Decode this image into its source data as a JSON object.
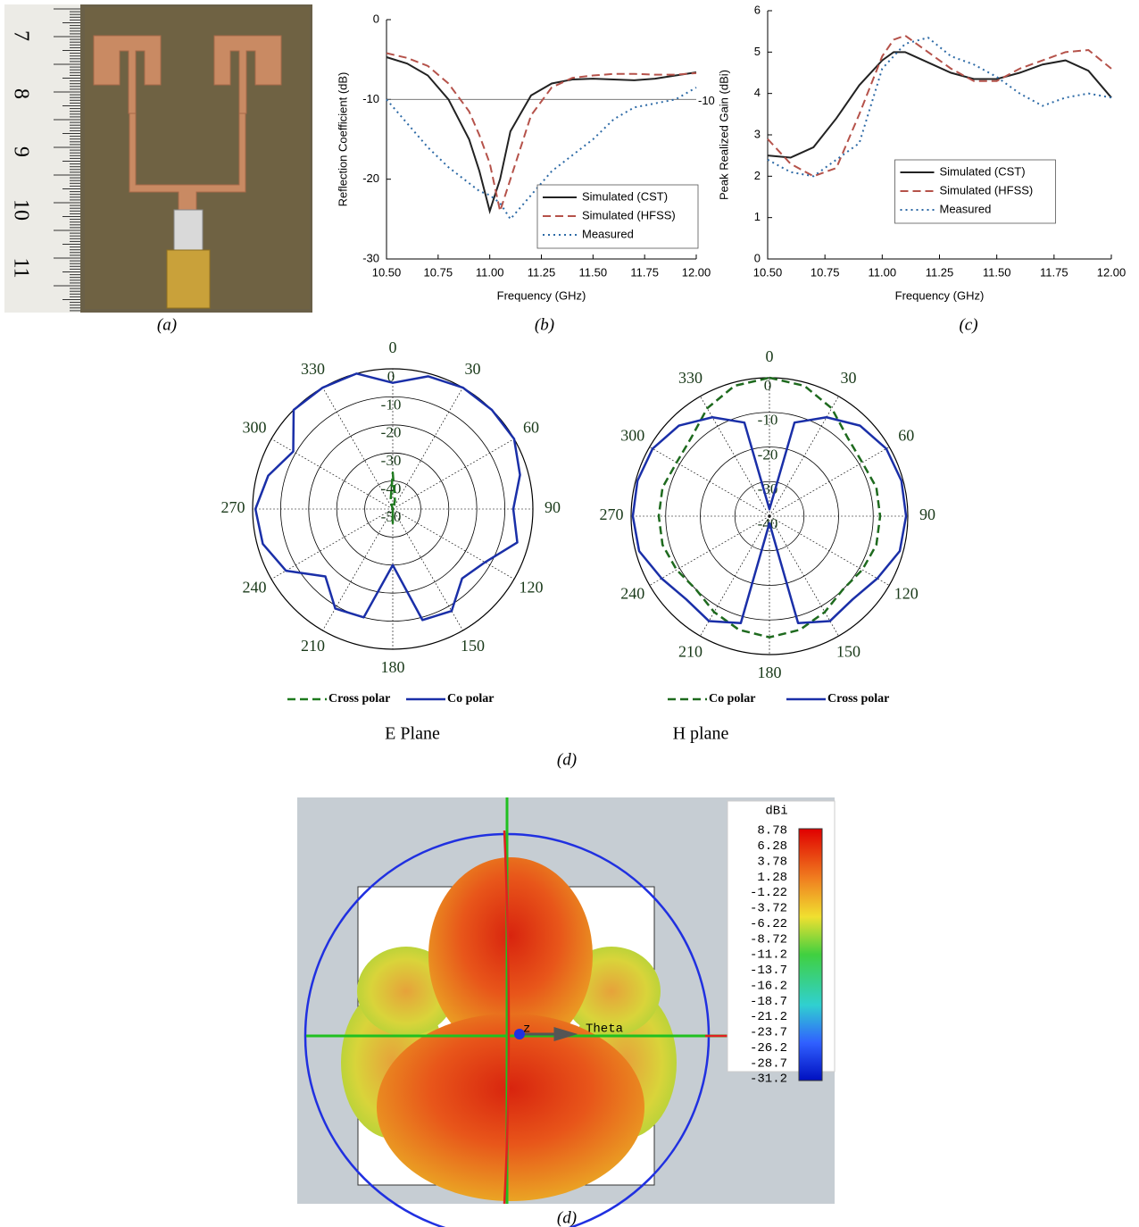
{
  "photo": {
    "ruler_labels": [
      "7",
      "8",
      "9",
      "10",
      "11"
    ],
    "caption": "(a)"
  },
  "chart_data": [
    {
      "type": "line",
      "caption": "(b)",
      "xlabel": "Frequency (GHz)",
      "ylabel": "Reflection Coefficient (dB)",
      "xlim": [
        10.5,
        12
      ],
      "xticks": [
        {
          "value": 10.5,
          "label": "10.50"
        },
        {
          "value": 10.75,
          "label": "10.75"
        },
        {
          "value": 11,
          "label": "11.00"
        },
        {
          "value": 11.25,
          "label": "11.25"
        },
        {
          "value": 11.5,
          "label": "11.50"
        },
        {
          "value": 11.75,
          "label": "11.75"
        },
        {
          "value": 12,
          "label": "12.00"
        }
      ],
      "ylim": [
        -30,
        0
      ],
      "yticks": [
        -30,
        -20,
        -10,
        0
      ],
      "reference_line": -10,
      "legend": "lower right",
      "x": [
        10.5,
        10.6,
        10.7,
        10.8,
        10.9,
        10.95,
        11.0,
        11.05,
        11.1,
        11.2,
        11.3,
        11.4,
        11.5,
        11.6,
        11.7,
        11.8,
        11.9,
        12.0
      ],
      "series": [
        {
          "name": "Simulated (CST)",
          "color": "#222222",
          "style": "solid",
          "values": [
            -4.7,
            -5.5,
            -7,
            -10,
            -15,
            -19,
            -24,
            -20,
            -14,
            -9.5,
            -8,
            -7.5,
            -7.4,
            -7.5,
            -7.6,
            -7.4,
            -7,
            -6.6
          ]
        },
        {
          "name": "Simulated (HFSS)",
          "color": "#b5524a",
          "style": "dashed",
          "values": [
            -4.2,
            -4.8,
            -5.8,
            -8,
            -11.5,
            -14.5,
            -18,
            -24,
            -20,
            -12,
            -8.5,
            -7.3,
            -7,
            -6.8,
            -6.8,
            -6.9,
            -6.9,
            -6.7
          ]
        },
        {
          "name": "Measured",
          "color": "#2d6aa6",
          "style": "dotted",
          "values": [
            -10,
            -13,
            -16,
            -18.5,
            -20.5,
            -21.5,
            -22,
            -23,
            -25,
            -22,
            -19,
            -17,
            -15,
            -12.5,
            -11,
            -10.5,
            -10,
            -8.5
          ]
        }
      ]
    },
    {
      "type": "line",
      "caption": "(c)",
      "xlabel": "Frequency (GHz)",
      "ylabel": "Peak Realized Gain (dBi)",
      "xlim": [
        10.5,
        12
      ],
      "xticks": [
        {
          "value": 10.5,
          "label": "10.50"
        },
        {
          "value": 10.75,
          "label": "10.75"
        },
        {
          "value": 11,
          "label": "11.00"
        },
        {
          "value": 11.25,
          "label": "11.25"
        },
        {
          "value": 11.5,
          "label": "11.50"
        },
        {
          "value": 11.75,
          "label": "11.75"
        },
        {
          "value": 12,
          "label": "12.00"
        }
      ],
      "ylim": [
        0,
        6
      ],
      "yticks": [
        0,
        1,
        2,
        3,
        4,
        5,
        6
      ],
      "legend": "lower center",
      "x": [
        10.5,
        10.6,
        10.7,
        10.8,
        10.9,
        11.0,
        11.05,
        11.1,
        11.2,
        11.3,
        11.4,
        11.5,
        11.6,
        11.7,
        11.8,
        11.9,
        12.0
      ],
      "series": [
        {
          "name": "Simulated (CST)",
          "color": "#222222",
          "style": "solid",
          "values": [
            2.5,
            2.45,
            2.7,
            3.4,
            4.2,
            4.8,
            5.0,
            5.0,
            4.75,
            4.5,
            4.35,
            4.35,
            4.5,
            4.7,
            4.8,
            4.55,
            3.9
          ]
        },
        {
          "name": "Simulated (HFSS)",
          "color": "#b5524a",
          "style": "dashed",
          "values": [
            2.9,
            2.3,
            2.0,
            2.2,
            3.5,
            4.9,
            5.3,
            5.4,
            5.0,
            4.6,
            4.3,
            4.3,
            4.6,
            4.8,
            5.0,
            5.05,
            4.6
          ]
        },
        {
          "name": "Measured",
          "color": "#2d6aa6",
          "style": "dotted",
          "values": [
            2.4,
            2.1,
            2.0,
            2.4,
            2.8,
            4.6,
            4.9,
            5.2,
            5.35,
            4.9,
            4.7,
            4.4,
            4.0,
            3.7,
            3.9,
            4.0,
            3.9
          ]
        }
      ]
    },
    {
      "type": "polar",
      "subtitle": "E Plane",
      "rlim": [
        -50,
        0
      ],
      "rticks": [
        0,
        -10,
        -20,
        -30,
        -40,
        -50
      ],
      "angle_ticks": [
        0,
        30,
        60,
        90,
        120,
        150,
        180,
        210,
        240,
        270,
        300,
        330
      ],
      "angles": [
        0,
        15,
        30,
        45,
        60,
        75,
        90,
        105,
        120,
        135,
        150,
        165,
        180,
        195,
        210,
        225,
        240,
        255,
        270,
        285,
        300,
        315,
        330,
        345
      ],
      "series": [
        {
          "name": "Cross polar",
          "color": "#1e7a1e",
          "style": "dashed",
          "values": [
            -37,
            -47,
            -50,
            -50,
            -50,
            -50,
            -50,
            -50,
            -50,
            -50,
            -50,
            -50,
            -45,
            -50,
            -50,
            -50,
            -50,
            -50,
            -50,
            -50,
            -50,
            -50,
            -50,
            -47
          ]
        },
        {
          "name": "Co polar",
          "color": "#1a2fa8",
          "style": "solid",
          "values": [
            -5,
            -1,
            0,
            0,
            0,
            -3,
            -7,
            -4,
            -12,
            -15,
            -8,
            -9,
            -30,
            -10,
            -9,
            -16,
            -6,
            -2,
            -1,
            -4,
            -9,
            0,
            0,
            0
          ]
        }
      ]
    },
    {
      "type": "polar",
      "subtitle": "H plane",
      "caption": "(d)",
      "rlim": [
        -40,
        0
      ],
      "rticks": [
        0,
        -10,
        -20,
        -30,
        -40
      ],
      "angle_ticks": [
        0,
        30,
        60,
        90,
        120,
        150,
        180,
        210,
        240,
        270,
        300,
        330
      ],
      "angles": [
        0,
        15,
        30,
        45,
        60,
        75,
        90,
        105,
        120,
        135,
        150,
        165,
        180,
        195,
        210,
        225,
        240,
        255,
        270,
        285,
        300,
        315,
        330,
        345
      ],
      "series": [
        {
          "name": "Co polar",
          "color": "#1e6a1e",
          "style": "dashed",
          "values": [
            0,
            -1,
            -4,
            -8,
            -9,
            -8,
            -8,
            -8,
            -9,
            -10,
            -8,
            -6,
            -5,
            -6,
            -8,
            -10,
            -9,
            -8,
            -8,
            -8,
            -9,
            -8,
            -4,
            -1
          ]
        },
        {
          "name": "Cross polar",
          "color": "#1a2fa8",
          "style": "solid",
          "values": [
            -38,
            -12,
            -7,
            -3,
            -1,
            -0.5,
            -0.5,
            -1,
            -4,
            -6,
            -5,
            -8,
            -38,
            -8,
            -5,
            -6,
            -4,
            -1,
            -0.5,
            -0.5,
            -1,
            -3,
            -7,
            -12
          ]
        }
      ]
    },
    {
      "type": "colormap",
      "caption": "(d)",
      "colorbar_title": "dBi",
      "colorbar_ticks": [
        8.78,
        6.28,
        3.78,
        1.28,
        -1.22,
        -3.72,
        -6.22,
        -8.72,
        -11.2,
        -13.7,
        -16.2,
        -18.7,
        -21.2,
        -23.7,
        -26.2,
        -28.7,
        -31.2
      ],
      "axis_labels": [
        "z",
        "Theta"
      ]
    }
  ]
}
